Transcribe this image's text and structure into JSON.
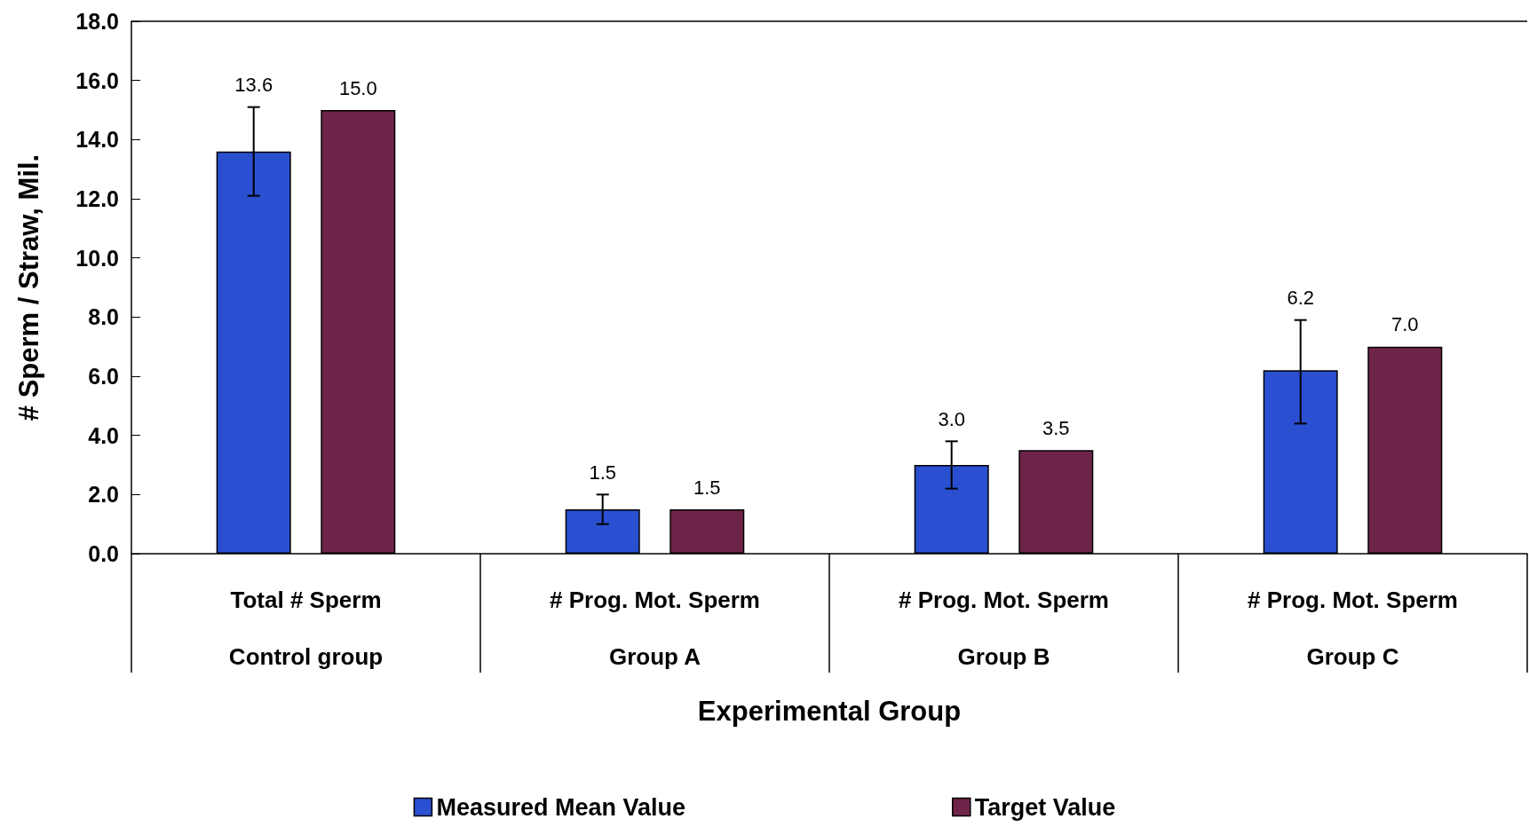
{
  "chart_data": {
    "type": "bar",
    "xlabel": "Experimental Group",
    "ylabel": "# Sperm / Straw, Mil.",
    "categories": [
      "Total # Sperm\nControl group",
      "# Prog. Mot. Sperm\nGroup A",
      "# Prog. Mot. Sperm\nGroup B",
      "# Prog. Mot. Sperm\nGroup C"
    ],
    "series": [
      {
        "name": "Measured Mean Value",
        "color": "#2a4fd0",
        "values": [
          13.6,
          1.5,
          3.0,
          6.2
        ],
        "value_labels": [
          "13.6",
          "1.5",
          "3.0",
          "6.2"
        ],
        "errors": [
          1.5,
          0.5,
          0.8,
          [
            4.4,
            7.9
          ]
        ]
      },
      {
        "name": "Target Value",
        "color": "#6e2448",
        "values": [
          15.0,
          1.5,
          3.5,
          7.0
        ],
        "value_labels": [
          "15.0",
          "1.5",
          "3.5",
          "7.0"
        ]
      }
    ],
    "ylim": [
      0,
      18
    ],
    "yticks": [
      {
        "value": 0,
        "label": "0.0"
      },
      {
        "value": 2,
        "label": "2.0"
      },
      {
        "value": 4,
        "label": "4.0"
      },
      {
        "value": 6,
        "label": "6.0"
      },
      {
        "value": 8,
        "label": "8.0"
      },
      {
        "value": 10,
        "label": "10.0"
      },
      {
        "value": 12,
        "label": "12.0"
      },
      {
        "value": 14,
        "label": "14.0"
      },
      {
        "value": 16,
        "label": "16.0"
      },
      {
        "value": 18,
        "label": "18.0"
      }
    ],
    "grid": false,
    "legend": "bottom"
  }
}
